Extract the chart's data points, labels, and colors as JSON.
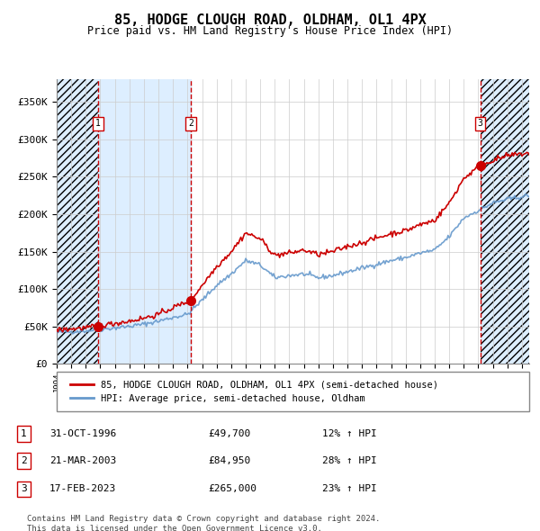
{
  "title": "85, HODGE CLOUGH ROAD, OLDHAM, OL1 4PX",
  "subtitle": "Price paid vs. HM Land Registry's House Price Index (HPI)",
  "sale_dates": [
    "1996-10-31",
    "2003-03-21",
    "2023-02-17"
  ],
  "sale_prices": [
    49700,
    84950,
    265000
  ],
  "sale_labels": [
    "1",
    "2",
    "3"
  ],
  "sale_pct": [
    "12% ↑ HPI",
    "28% ↑ HPI",
    "23% ↑ HPI"
  ],
  "sale_date_labels": [
    "31-OCT-1996",
    "21-MAR-2003",
    "17-FEB-2023"
  ],
  "sale_price_labels": [
    "£49,700",
    "£84,950",
    "£265,000"
  ],
  "hpi_line_color": "#6699cc",
  "price_line_color": "#cc0000",
  "marker_color": "#cc0000",
  "vline_color_dashed": "#cc0000",
  "shaded_region_color": "#ddeeff",
  "grid_color": "#cccccc",
  "background_color": "#ffffff",
  "legend_box_color": "#cc0000",
  "legend_entry1": "85, HODGE CLOUGH ROAD, OLDHAM, OL1 4PX (semi-detached house)",
  "legend_entry2": "HPI: Average price, semi-detached house, Oldham",
  "footer": "Contains HM Land Registry data © Crown copyright and database right 2024.\nThis data is licensed under the Open Government Licence v3.0.",
  "ylim": [
    0,
    380000
  ],
  "yticks": [
    0,
    50000,
    100000,
    150000,
    200000,
    250000,
    300000,
    350000
  ],
  "ytick_labels": [
    "£0",
    "£50K",
    "£100K",
    "£150K",
    "£200K",
    "£250K",
    "£300K",
    "£350K"
  ],
  "xstart": 1994.0,
  "xend": 2026.5
}
